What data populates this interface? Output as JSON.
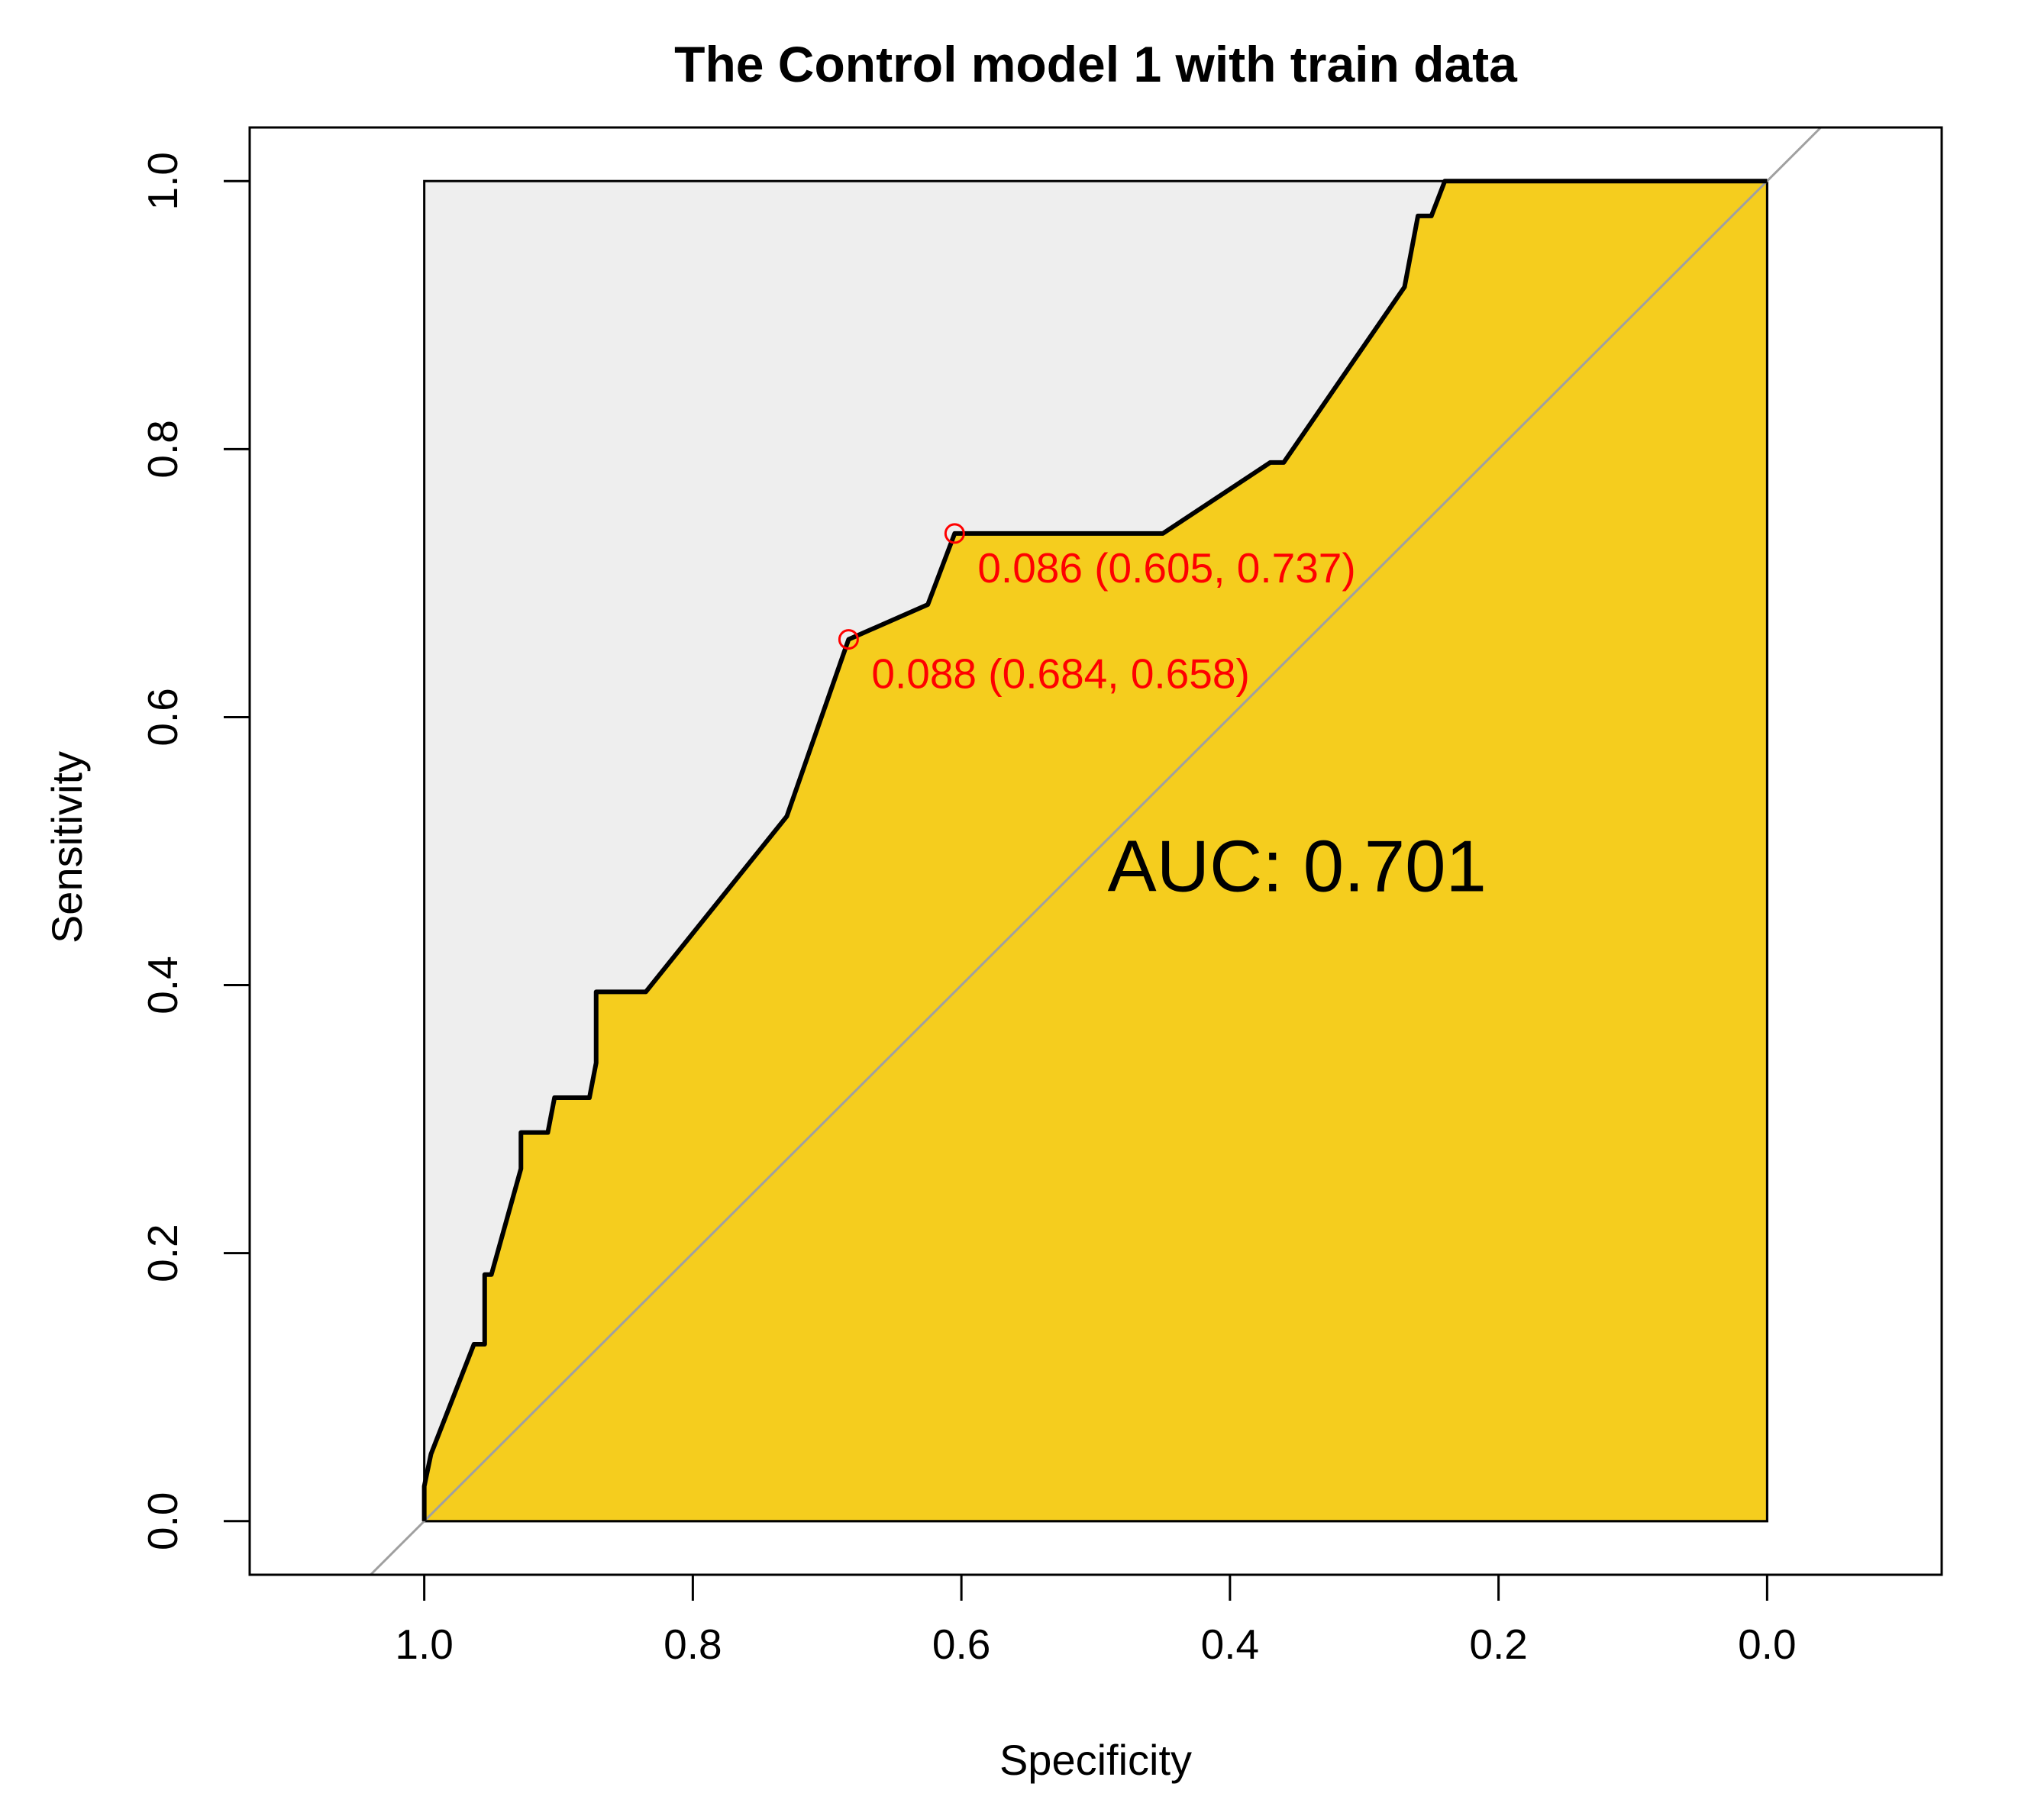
{
  "chart_data": {
    "type": "line",
    "title": "The Control model 1 with train data",
    "xlabel": "Specificity",
    "ylabel": "Sensitivity",
    "x_reversed": true,
    "xlim": [
      1.13,
      -0.13
    ],
    "ylim": [
      -0.04,
      1.04
    ],
    "x_ticks": [
      1.0,
      0.8,
      0.6,
      0.4,
      0.2,
      0.0
    ],
    "x_tick_labels": [
      "1.0",
      "0.8",
      "0.6",
      "0.4",
      "0.2",
      "0.0"
    ],
    "y_ticks": [
      0.0,
      0.2,
      0.4,
      0.6,
      0.8,
      1.0
    ],
    "y_tick_labels": [
      "0.0",
      "0.2",
      "0.4",
      "0.6",
      "0.8",
      "1.0"
    ],
    "grid": false,
    "colors": {
      "auc_fill": "#F5CD1E",
      "max_auc_fill": "#EEEEEE",
      "curve": "#000000",
      "diagonal": "#A0A0A0",
      "threshold_points": "#FF0000"
    },
    "series": [
      {
        "x": [
          1.0,
          1.0,
          0.995,
          0.963,
          0.963,
          0.955,
          0.955,
          0.95,
          0.928,
          0.928,
          0.908,
          0.903,
          0.903,
          0.877,
          0.872,
          0.872,
          0.835,
          0.73,
          0.684,
          0.625,
          0.605,
          0.605,
          0.45,
          0.37,
          0.36,
          0.27,
          0.26,
          0.25,
          0.24,
          0.24,
          0.2,
          0.0
        ],
        "y": [
          0.0,
          0.026,
          0.05,
          0.132,
          0.132,
          0.132,
          0.184,
          0.184,
          0.263,
          0.29,
          0.29,
          0.316,
          0.316,
          0.316,
          0.342,
          0.395,
          0.395,
          0.526,
          0.658,
          0.684,
          0.737,
          0.737,
          0.737,
          0.79,
          0.79,
          0.921,
          0.974,
          0.974,
          1.0,
          1.0,
          1.0,
          1.0
        ]
      }
    ],
    "threshold_points": [
      {
        "x": 0.605,
        "y": 0.737,
        "label": "0.086 (0.605, 0.737)"
      },
      {
        "x": 0.684,
        "y": 0.658,
        "label": "0.088 (0.684, 0.658)"
      }
    ],
    "auc_label": "AUC: 0.701",
    "auc_label_position": {
      "x": 0.35,
      "y": 0.47
    }
  }
}
